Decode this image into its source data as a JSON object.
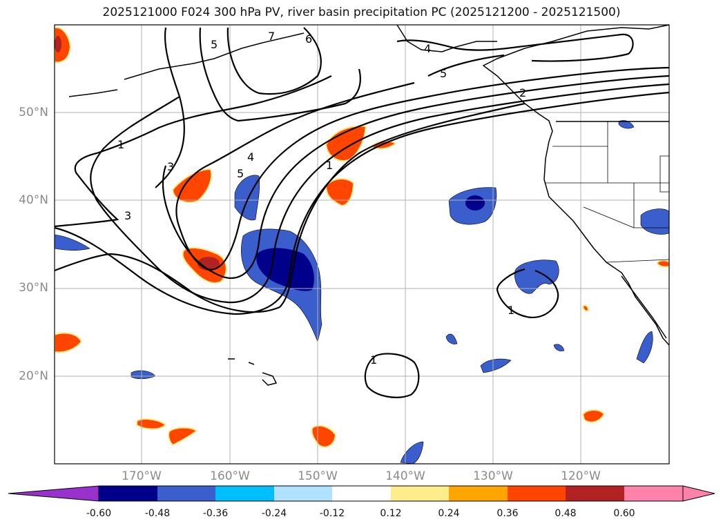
{
  "title": "2025121000 F024 300 hPa PV, river basin precipitation PC (2025121200 - 2025121500)",
  "lat_labels": [
    "50°N",
    "40°N",
    "30°N",
    "20°N"
  ],
  "lon_labels": [
    "170°W",
    "160°W",
    "150°W",
    "140°W",
    "130°W",
    "120°W"
  ],
  "colorbar": {
    "ticks": [
      "-0.60",
      "-0.48",
      "-0.36",
      "-0.24",
      "-0.12",
      "0.12",
      "0.24",
      "0.36",
      "0.48",
      "0.60"
    ],
    "colors": [
      "#9932cc",
      "#00008b",
      "#3a5fcd",
      "#00bfff",
      "#b0e2ff",
      "#ffffff",
      "#ffec8b",
      "#ffa500",
      "#ff4500",
      "#b22222",
      "#ff82ab"
    ]
  },
  "map": {
    "extent_lon": [
      -180,
      -110
    ],
    "extent_lat": [
      10,
      60
    ],
    "contour_labels": [
      "1",
      "1",
      "1",
      "1",
      "2",
      "3",
      "3",
      "4",
      "4",
      "5",
      "5",
      "5",
      "6",
      "7"
    ]
  }
}
